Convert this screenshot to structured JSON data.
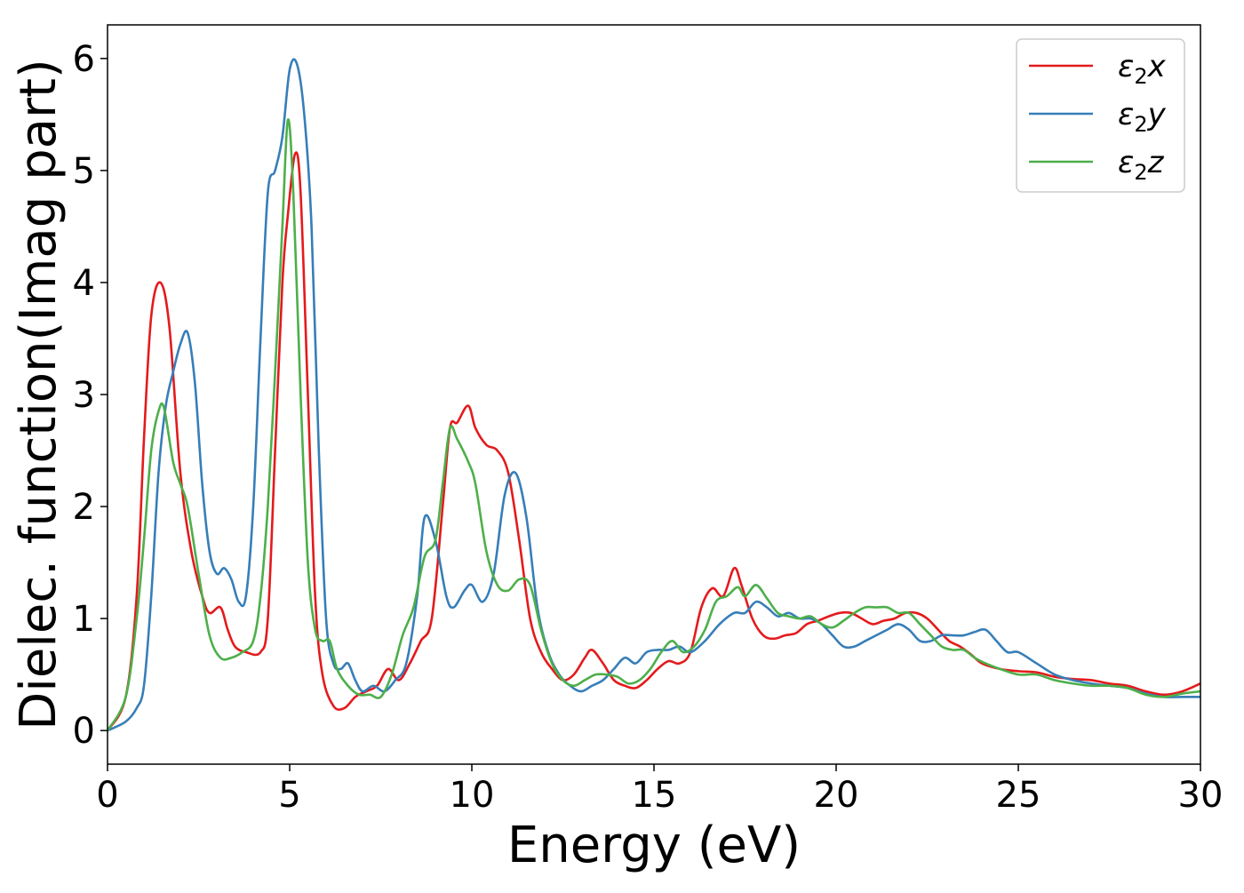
{
  "chart_data": {
    "type": "line",
    "xlabel": "Energy (eV)",
    "ylabel": "Dielec. function(Imag part)",
    "xlim": [
      0,
      30
    ],
    "ylim": [
      -0.3,
      6.3
    ],
    "xticks": [
      0,
      5,
      10,
      15,
      20,
      25,
      30
    ],
    "yticks": [
      0,
      1,
      2,
      3,
      4,
      5,
      6
    ],
    "grid": false,
    "legend_position": "top-right",
    "series": [
      {
        "name": "ε2x",
        "legend_base": "ε",
        "legend_sub": "2",
        "legend_var": "x",
        "color": "#e41a1c",
        "x": [
          0,
          0.5,
          0.8,
          1.0,
          1.2,
          1.45,
          1.7,
          2.0,
          2.3,
          2.6,
          2.8,
          3.1,
          3.3,
          3.5,
          3.8,
          4.2,
          4.4,
          4.6,
          4.8,
          4.95,
          5.15,
          5.3,
          5.5,
          5.7,
          5.9,
          6.2,
          6.5,
          6.8,
          7.1,
          7.4,
          7.7,
          8.0,
          8.3,
          8.6,
          8.9,
          9.2,
          9.4,
          9.6,
          9.9,
          10.1,
          10.4,
          10.7,
          11.0,
          11.3,
          11.6,
          11.9,
          12.2,
          12.5,
          12.8,
          13.1,
          13.3,
          13.6,
          13.9,
          14.2,
          14.5,
          14.8,
          15.1,
          15.4,
          15.7,
          16.0,
          16.3,
          16.6,
          16.9,
          17.2,
          17.4,
          17.7,
          18.0,
          18.3,
          18.6,
          18.9,
          19.2,
          19.5,
          19.8,
          20.1,
          20.4,
          20.7,
          21.0,
          21.3,
          21.6,
          21.9,
          22.2,
          22.5,
          22.8,
          23.1,
          23.4,
          23.7,
          24.0,
          24.5,
          25.0,
          25.5,
          26.0,
          26.5,
          27.0,
          27.5,
          28.0,
          28.5,
          29.0,
          29.5,
          30.0
        ],
        "values": [
          0,
          0.3,
          1.2,
          2.6,
          3.7,
          4.0,
          3.6,
          2.3,
          1.6,
          1.2,
          1.05,
          1.1,
          0.9,
          0.75,
          0.7,
          0.7,
          1.0,
          2.5,
          4.0,
          4.6,
          5.15,
          4.8,
          3.0,
          1.2,
          0.5,
          0.22,
          0.2,
          0.3,
          0.35,
          0.4,
          0.55,
          0.45,
          0.6,
          0.8,
          1.0,
          2.0,
          2.7,
          2.75,
          2.9,
          2.7,
          2.55,
          2.5,
          2.3,
          1.7,
          1.0,
          0.7,
          0.55,
          0.45,
          0.5,
          0.65,
          0.72,
          0.6,
          0.45,
          0.4,
          0.38,
          0.45,
          0.55,
          0.62,
          0.6,
          0.7,
          1.1,
          1.27,
          1.2,
          1.45,
          1.3,
          1.0,
          0.85,
          0.82,
          0.85,
          0.87,
          0.95,
          0.98,
          1.02,
          1.05,
          1.05,
          1.0,
          0.95,
          0.98,
          1.0,
          1.05,
          1.05,
          1.0,
          0.9,
          0.8,
          0.75,
          0.68,
          0.6,
          0.55,
          0.53,
          0.52,
          0.48,
          0.46,
          0.45,
          0.42,
          0.4,
          0.35,
          0.32,
          0.35,
          0.42
        ]
      },
      {
        "name": "ε2y",
        "legend_base": "ε",
        "legend_sub": "2",
        "legend_var": "y",
        "color": "#377eb8",
        "x": [
          0,
          0.5,
          0.8,
          1.0,
          1.2,
          1.4,
          1.6,
          1.8,
          2.0,
          2.2,
          2.4,
          2.6,
          2.8,
          3.0,
          3.2,
          3.4,
          3.6,
          3.8,
          4.0,
          4.2,
          4.4,
          4.6,
          4.8,
          5.0,
          5.2,
          5.4,
          5.6,
          5.8,
          6.0,
          6.2,
          6.4,
          6.6,
          6.8,
          7.0,
          7.3,
          7.6,
          7.9,
          8.2,
          8.5,
          8.7,
          9.0,
          9.3,
          9.5,
          9.8,
          10.0,
          10.3,
          10.6,
          10.9,
          11.2,
          11.5,
          11.8,
          12.1,
          12.4,
          12.7,
          13.0,
          13.3,
          13.6,
          13.9,
          14.2,
          14.5,
          14.8,
          15.1,
          15.4,
          15.7,
          16.0,
          16.4,
          16.8,
          17.2,
          17.5,
          17.8,
          18.1,
          18.4,
          18.7,
          19.0,
          19.3,
          19.6,
          19.9,
          20.2,
          20.5,
          20.8,
          21.1,
          21.4,
          21.7,
          22.0,
          22.3,
          22.6,
          22.9,
          23.2,
          23.5,
          23.8,
          24.1,
          24.4,
          24.7,
          25.0,
          25.5,
          26.0,
          26.5,
          27.0,
          27.5,
          28.0,
          28.5,
          29.0,
          29.5,
          30.0
        ],
        "values": [
          0,
          0.08,
          0.2,
          0.4,
          1.2,
          2.3,
          2.9,
          3.2,
          3.45,
          3.55,
          3.1,
          2.2,
          1.6,
          1.4,
          1.45,
          1.35,
          1.15,
          1.2,
          2.0,
          3.5,
          4.8,
          5.0,
          5.3,
          5.9,
          5.95,
          5.5,
          4.5,
          2.5,
          1.0,
          0.6,
          0.55,
          0.6,
          0.45,
          0.35,
          0.4,
          0.35,
          0.45,
          0.6,
          1.2,
          1.9,
          1.7,
          1.2,
          1.1,
          1.25,
          1.3,
          1.15,
          1.4,
          2.1,
          2.3,
          1.9,
          1.1,
          0.7,
          0.5,
          0.4,
          0.35,
          0.4,
          0.45,
          0.55,
          0.65,
          0.6,
          0.7,
          0.72,
          0.72,
          0.75,
          0.7,
          0.8,
          0.95,
          1.05,
          1.05,
          1.15,
          1.1,
          1.02,
          1.05,
          1.0,
          1.0,
          0.95,
          0.85,
          0.75,
          0.75,
          0.8,
          0.85,
          0.9,
          0.95,
          0.9,
          0.8,
          0.8,
          0.85,
          0.85,
          0.85,
          0.88,
          0.9,
          0.8,
          0.7,
          0.7,
          0.6,
          0.5,
          0.45,
          0.42,
          0.4,
          0.38,
          0.33,
          0.3,
          0.3,
          0.3
        ]
      },
      {
        "name": "ε2z",
        "legend_base": "ε",
        "legend_sub": "2",
        "legend_var": "z",
        "color": "#4daf4a",
        "x": [
          0,
          0.5,
          0.8,
          1.0,
          1.2,
          1.4,
          1.55,
          1.8,
          2.0,
          2.2,
          2.5,
          2.8,
          3.1,
          3.4,
          3.7,
          4.0,
          4.2,
          4.4,
          4.6,
          4.8,
          4.95,
          5.1,
          5.3,
          5.5,
          5.7,
          5.9,
          6.1,
          6.3,
          6.6,
          6.9,
          7.2,
          7.5,
          7.8,
          8.1,
          8.4,
          8.7,
          9.0,
          9.2,
          9.4,
          9.6,
          9.9,
          10.1,
          10.4,
          10.7,
          11.0,
          11.3,
          11.6,
          11.9,
          12.2,
          12.5,
          12.8,
          13.1,
          13.4,
          13.7,
          14.0,
          14.3,
          14.6,
          14.9,
          15.2,
          15.5,
          15.8,
          16.1,
          16.4,
          16.7,
          17.0,
          17.3,
          17.5,
          17.8,
          18.1,
          18.4,
          18.7,
          19.0,
          19.3,
          19.6,
          19.9,
          20.2,
          20.5,
          20.8,
          21.1,
          21.4,
          21.7,
          22.0,
          22.3,
          22.6,
          22.9,
          23.2,
          23.5,
          23.8,
          24.1,
          24.5,
          25.0,
          25.5,
          26.0,
          26.5,
          27.0,
          27.5,
          28.0,
          28.5,
          29.0,
          29.5,
          30.0
        ],
        "values": [
          0,
          0.3,
          1.0,
          1.7,
          2.5,
          2.85,
          2.88,
          2.4,
          2.2,
          2.0,
          1.4,
          0.85,
          0.65,
          0.65,
          0.7,
          0.8,
          1.2,
          2.0,
          3.2,
          4.5,
          5.45,
          4.8,
          3.0,
          1.5,
          0.9,
          0.8,
          0.8,
          0.55,
          0.4,
          0.32,
          0.32,
          0.3,
          0.5,
          0.85,
          1.1,
          1.55,
          1.7,
          2.2,
          2.7,
          2.6,
          2.4,
          2.2,
          1.6,
          1.3,
          1.25,
          1.35,
          1.3,
          0.9,
          0.6,
          0.45,
          0.4,
          0.45,
          0.5,
          0.5,
          0.48,
          0.42,
          0.45,
          0.55,
          0.7,
          0.8,
          0.7,
          0.75,
          0.9,
          1.15,
          1.2,
          1.28,
          1.2,
          1.3,
          1.18,
          1.05,
          1.02,
          1.0,
          1.02,
          0.95,
          0.92,
          0.98,
          1.05,
          1.1,
          1.1,
          1.1,
          1.05,
          1.05,
          0.95,
          0.85,
          0.75,
          0.72,
          0.72,
          0.65,
          0.6,
          0.55,
          0.5,
          0.5,
          0.45,
          0.42,
          0.4,
          0.4,
          0.38,
          0.32,
          0.3,
          0.33,
          0.35
        ]
      }
    ]
  }
}
